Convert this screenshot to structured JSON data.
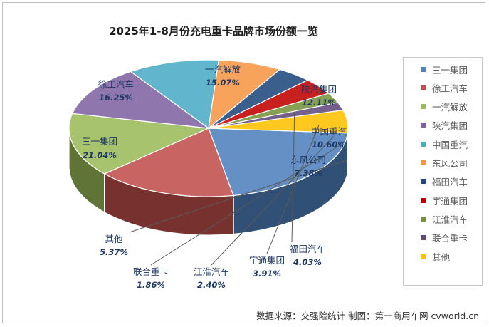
{
  "chart_data": {
    "type": "pie",
    "title": "2025年1-8月份充电重卡品牌市场份额一览",
    "slices": [
      {
        "name": "三一集团",
        "value": 21.04,
        "label": "21.04%",
        "color": "#4f81bd"
      },
      {
        "name": "徐工汽车",
        "value": 16.25,
        "label": "16.25%",
        "color": "#c0504d"
      },
      {
        "name": "一汽解放",
        "value": 15.07,
        "label": "15.07%",
        "color": "#9bbb59"
      },
      {
        "name": "陕汽集团",
        "value": 12.11,
        "label": "12.11%",
        "color": "#8064a2"
      },
      {
        "name": "中国重汽",
        "value": 10.6,
        "label": "10.60%",
        "color": "#4bacc6"
      },
      {
        "name": "东风公司",
        "value": 7.38,
        "label": "7.38%",
        "color": "#f79646"
      },
      {
        "name": "福田汽车",
        "value": 4.03,
        "label": "4.03%",
        "color": "#1f497d"
      },
      {
        "name": "宇通集团",
        "value": 3.91,
        "label": "3.91%",
        "color": "#c00000"
      },
      {
        "name": "江淮汽车",
        "value": 2.4,
        "label": "2.40%",
        "color": "#77933c"
      },
      {
        "name": "联合重卡",
        "value": 1.86,
        "label": "1.86%",
        "color": "#604a7b"
      },
      {
        "name": "其他",
        "value": 5.37,
        "label": "5.37%",
        "color": "#ffc000"
      }
    ],
    "legend_position": "right"
  },
  "source_text": "数据来源：交强险统计   制图：第一商用车网 cvworld.cn"
}
